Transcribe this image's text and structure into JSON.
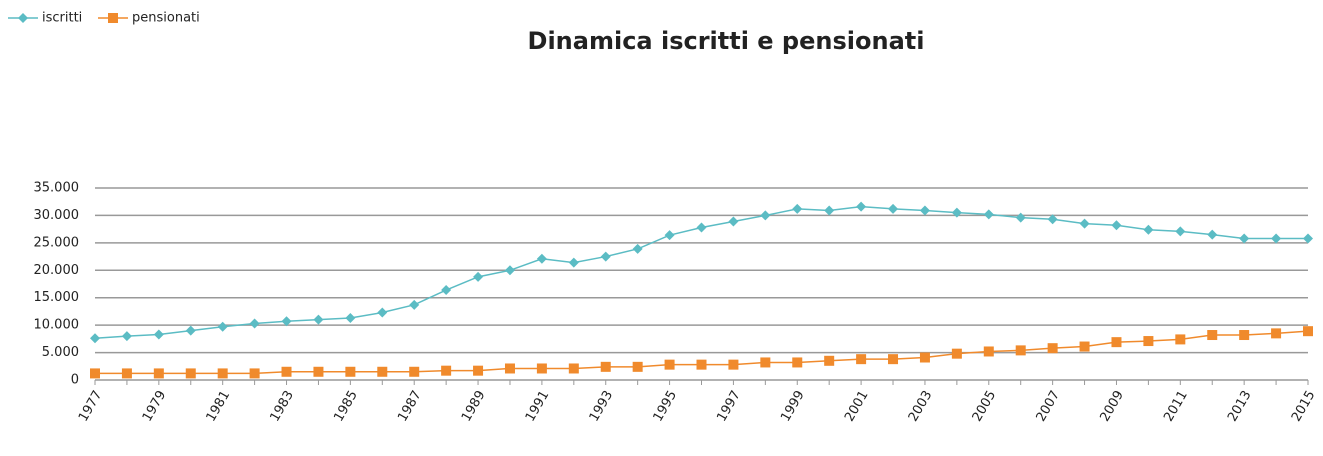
{
  "chart_data": {
    "type": "line",
    "title": "Dinamica iscritti e pensionati",
    "categories": [
      "1977",
      null,
      "1979",
      null,
      "1981",
      null,
      "1983",
      null,
      "1985",
      null,
      "1987",
      null,
      "1989",
      null,
      "1991",
      null,
      "1993",
      null,
      "1995",
      null,
      "1997",
      null,
      "1999",
      null,
      "2001",
      null,
      "2003",
      null,
      "2005",
      null,
      "2007",
      null,
      "2009",
      null,
      "2011",
      null,
      "2013",
      null,
      "2015"
    ],
    "series": [
      {
        "name": "iscritti",
        "color": "#5bbcc4",
        "marker": "diamond",
        "values": [
          7600,
          8000,
          8300,
          9000,
          9700,
          10300,
          10700,
          11000,
          11300,
          12300,
          13700,
          16400,
          18800,
          20000,
          22100,
          21400,
          22500,
          23900,
          26400,
          27800,
          28900,
          30000,
          31200,
          30900,
          31600,
          31200,
          30900,
          30500,
          30200,
          29600,
          29300,
          28500,
          28200,
          27400,
          27100,
          26500,
          25800,
          25800,
          25800
        ]
      },
      {
        "name": "pensionati",
        "color": "#f08a2c",
        "marker": "square",
        "values": [
          1200,
          1200,
          1200,
          1200,
          1200,
          1200,
          1500,
          1500,
          1500,
          1500,
          1500,
          1700,
          1700,
          2100,
          2100,
          2100,
          2400,
          2400,
          2800,
          2800,
          2800,
          3200,
          3200,
          3500,
          3800,
          3800,
          4100,
          4800,
          5200,
          5400,
          5800,
          6100,
          6900,
          7100,
          7400,
          8200,
          8200,
          8500,
          8900
        ]
      }
    ],
    "ylim": [
      0,
      35000
    ],
    "yticks": [
      0,
      {
        "value": 5000,
        "label": "5.000"
      },
      {
        "value": 10000,
        "label": "10.000"
      },
      {
        "value": 15000,
        "label": "15.000"
      },
      {
        "value": 20000,
        "label": "20.000"
      },
      {
        "value": 25000,
        "label": "25.000"
      },
      {
        "value": 30000,
        "label": "30.000"
      },
      {
        "value": 35000,
        "label": "35.000"
      }
    ],
    "grid": true,
    "legend": "top-left"
  }
}
